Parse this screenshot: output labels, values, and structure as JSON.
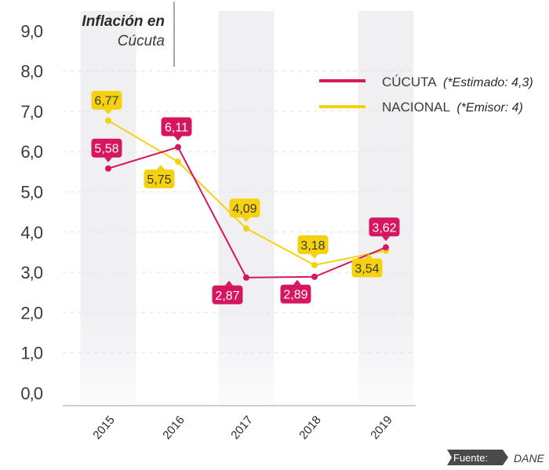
{
  "title": {
    "line1": "Inflación en",
    "line2": "Cúcuta"
  },
  "source": {
    "label": "Fuente:",
    "value": "DANE"
  },
  "colors": {
    "cucuta": "#d6165e",
    "nacional": "#f5d20f",
    "band": "#f0f0f3",
    "grid": "#e2e2e2",
    "axis": "#bdbdbd",
    "source_tag": "#4a4a4a"
  },
  "chart_data": {
    "type": "line",
    "title": "Inflación en Cúcuta",
    "xlabel": "",
    "ylabel": "",
    "categories": [
      "2015",
      "2016",
      "2017",
      "2018",
      "2019"
    ],
    "ylim": [
      0,
      9
    ],
    "yticks": [
      "0,0",
      "1,0",
      "2,0",
      "3,0",
      "4,0",
      "5,0",
      "6,0",
      "7,0",
      "8,0",
      "9,0"
    ],
    "grid": true,
    "legend_position": "top-right",
    "series": [
      {
        "key": "cucuta",
        "name": "CÚCUTA",
        "note": "(*Estimado: 4,3)",
        "values": [
          5.58,
          6.11,
          2.87,
          2.89,
          3.62
        ],
        "labels": [
          "5,58",
          "6,11",
          "2,87",
          "2,89",
          "3,62"
        ],
        "label_side": [
          "above",
          "above",
          "below",
          "below",
          "above"
        ]
      },
      {
        "key": "nacional",
        "name": "NACIONAL",
        "note": "(*Emisor: 4)",
        "values": [
          6.77,
          5.75,
          4.09,
          3.18,
          3.54
        ],
        "labels": [
          "6,77",
          "5,75",
          "4,09",
          "3,18",
          "3,54"
        ],
        "label_side": [
          "above",
          "below",
          "above",
          "above",
          "below"
        ]
      }
    ]
  }
}
